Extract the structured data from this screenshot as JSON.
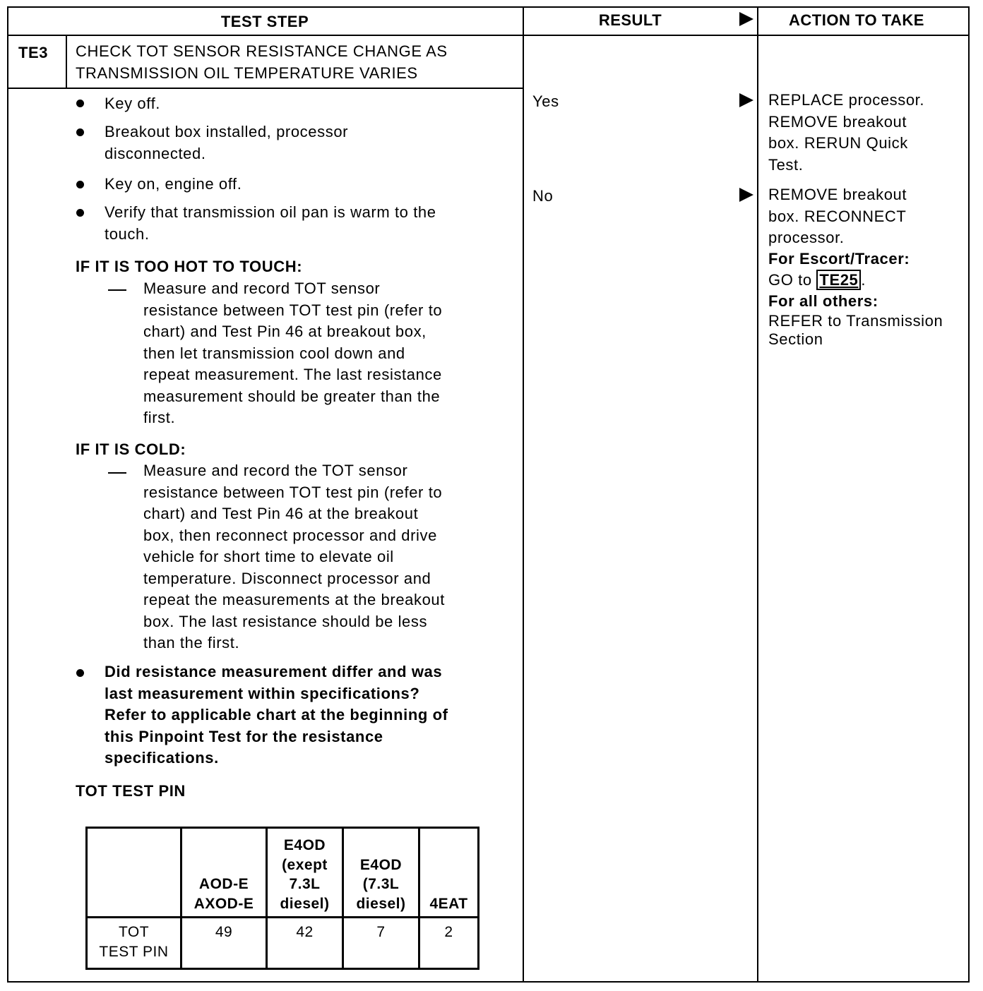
{
  "header": {
    "test_step": "TEST STEP",
    "result": "RESULT",
    "action": "ACTION TO TAKE"
  },
  "step": {
    "id": "TE3",
    "title_lines": [
      "CHECK TOT SENSOR RESISTANCE CHANGE AS",
      "TRANSMISSION OIL TEMPERATURE VARIES"
    ]
  },
  "bullets": [
    {
      "lines": [
        "Key off."
      ]
    },
    {
      "lines": [
        "Breakout box installed, processor",
        "disconnected."
      ]
    },
    {
      "lines": [
        "Key on, engine off."
      ]
    },
    {
      "lines": [
        "Verify that transmission oil pan is warm to the",
        "touch."
      ]
    }
  ],
  "hot": {
    "heading": "IF IT IS TOO HOT TO TOUCH:",
    "lines": [
      "Measure and record TOT sensor",
      "resistance between TOT test pin (refer to",
      "chart) and Test Pin 46 at breakout box,",
      "then let transmission cool down and",
      "repeat measurement. The last resistance",
      "measurement should be greater than the",
      "first."
    ]
  },
  "cold": {
    "heading": "IF IT IS COLD:",
    "lines": [
      "Measure and record the TOT sensor",
      "resistance between TOT test pin (refer to",
      "chart) and Test Pin 46 at the breakout",
      "box, then reconnect processor and drive",
      "vehicle for short time to elevate oil",
      "temperature. Disconnect processor and",
      "repeat the measurements at the breakout",
      "box. The last resistance should be less",
      "than the first."
    ]
  },
  "question": {
    "lines": [
      "Did resistance measurement differ and was",
      "last measurement within specifications?",
      "Refer to applicable chart at the beginning of",
      "this Pinpoint Test for the resistance",
      "specifications."
    ]
  },
  "pin_table": {
    "title": "TOT TEST PIN",
    "headers": [
      "",
      "AOD-E\nAXOD-E",
      "E4OD\n(exept\n7.3L\ndiesel)",
      "E4OD\n(7.3L\ndiesel)",
      "4EAT"
    ],
    "row": [
      "TOT\nTEST PIN",
      "49",
      "42",
      "7",
      "2"
    ]
  },
  "results": [
    {
      "label": "Yes",
      "action_lines": [
        "REPLACE processor.",
        "REMOVE breakout",
        "box. RERUN Quick",
        "Test."
      ]
    },
    {
      "label": "No",
      "action_lines": [
        "REMOVE breakout",
        "box. RECONNECT",
        "processor."
      ],
      "escort_heading": "For Escort/Tracer:",
      "goto_prefix": "GO to",
      "goto_ref": "TE25",
      "goto_suffix": ".",
      "others_heading": "For all others:",
      "others_lines": [
        "REFER to Transmission",
        "Section"
      ]
    }
  ]
}
